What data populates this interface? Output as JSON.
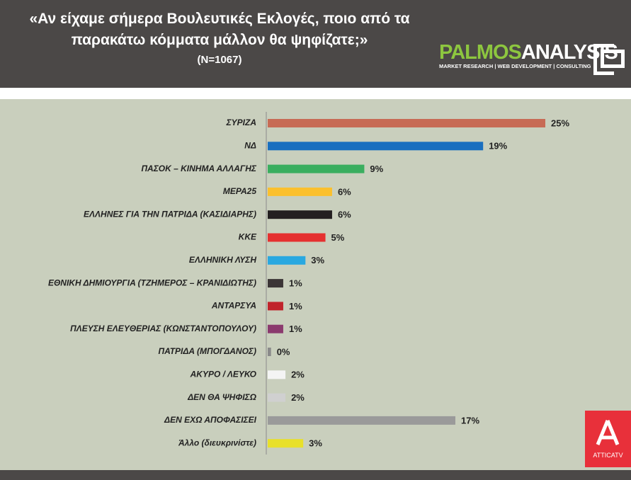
{
  "chart_data": {
    "type": "bar",
    "title": "«Αν είχαμε σήμερα Βουλευτικές Εκλογές, ποιο από τα παρακάτω κόμματα μάλλον θα ψηφίζατε;»",
    "subtitle": "(N=1067)",
    "categories": [
      "ΣΥΡΙΖΑ",
      "ΝΔ",
      "ΠΑΣΟΚ – ΚΙΝΗΜΑ ΑΛΛΑΓΗΣ",
      "ΜΕΡΑ25",
      "ΕΛΛΗΝΕΣ ΓΙΑ ΤΗΝ ΠΑΤΡΙΔΑ (ΚΑΣΙΔΙΑΡΗΣ)",
      "ΚΚΕ",
      "ΕΛΛΗΝΙΚΗ ΛΥΣΗ",
      "ΕΘΝΙΚΗ ΔΗΜΙΟΥΡΓΙΑ (ΤΖΗΜΕΡΟΣ – ΚΡΑΝΙΔΙΩΤΗΣ)",
      "ΑΝΤΑΡΣΥΑ",
      "ΠΛΕΥΣΗ ΕΛΕΥΘΕΡΙΑΣ (ΚΩΝΣΤΑΝΤΟΠΟΥΛΟΥ)",
      "ΠΑΤΡΙΔΑ (ΜΠΟΓΔΑΝΟΣ)",
      "ΑΚΥΡΟ / ΛΕΥΚΟ",
      "ΔΕΝ ΘΑ ΨΗΦΙΣΩ",
      "ΔΕΝ ΕΧΩ ΑΠΟΦΑΣΙΣΕΙ",
      "Άλλο (διευκρινίστε)"
    ],
    "values": [
      25,
      19.4,
      8.7,
      5.8,
      5.8,
      5.2,
      3.4,
      1.4,
      1.4,
      1.4,
      0.3,
      1.6,
      1.6,
      16.9,
      3.2
    ],
    "value_labels": [
      "25%",
      "19%",
      "9%",
      "6%",
      "6%",
      "5%",
      "3%",
      "1%",
      "1%",
      "1%",
      "0%",
      "2%",
      "2%",
      "17%",
      "3%"
    ],
    "colors": [
      "#c76b55",
      "#1a6fbf",
      "#3aae5f",
      "#fbc02d",
      "#231f20",
      "#e53030",
      "#29a8e0",
      "#3b3536",
      "#c0242b",
      "#8b3a6e",
      "#8a8a8a",
      "#f4f4f4",
      "#d0d0d0",
      "#9a9a9a",
      "#e8e02a"
    ]
  },
  "logos": {
    "brand_1": "PALMOS",
    "brand_2": "ANALYSIS",
    "tagline": "MARKET RESEARCH | WEB DEVELOPMENT | CONSULTING",
    "tv_1": "ATTICA",
    "tv_2": "TV"
  }
}
